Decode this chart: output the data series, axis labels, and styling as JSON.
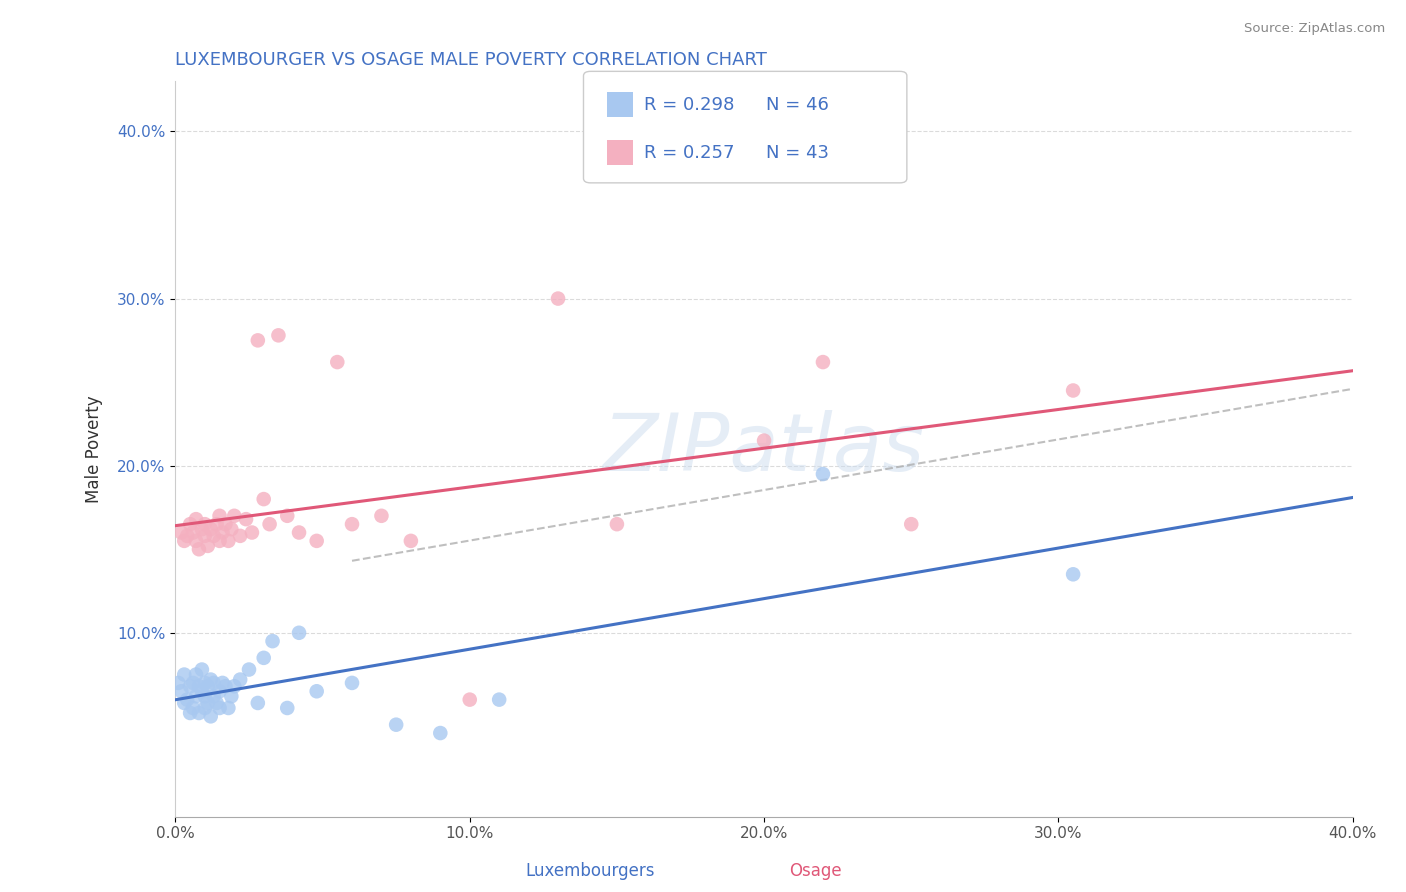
{
  "title": "LUXEMBOURGER VS OSAGE MALE POVERTY CORRELATION CHART",
  "source": "Source: ZipAtlas.com",
  "xlabel_lux": "Luxembourgers",
  "xlabel_osage": "Osage",
  "ylabel": "Male Poverty",
  "xlim": [
    0.0,
    0.4
  ],
  "ylim": [
    -0.01,
    0.43
  ],
  "xticks": [
    0.0,
    0.1,
    0.2,
    0.3,
    0.4
  ],
  "yticks": [
    0.1,
    0.2,
    0.3,
    0.4
  ],
  "ytick_labels": [
    "10.0%",
    "20.0%",
    "30.0%",
    "40.0%"
  ],
  "xtick_labels": [
    "0.0%",
    "10.0%",
    "20.0%",
    "30.0%",
    "40.0%"
  ],
  "lux_R": "0.298",
  "lux_N": "46",
  "osage_R": "0.257",
  "osage_N": "43",
  "lux_dot_color": "#a8c8f0",
  "osage_dot_color": "#f4b0c0",
  "lux_line_color": "#4472c4",
  "osage_line_color": "#e05878",
  "grid_color": "#cccccc",
  "bg_color": "#ffffff",
  "lux_x": [
    0.001,
    0.002,
    0.003,
    0.003,
    0.004,
    0.005,
    0.005,
    0.006,
    0.006,
    0.007,
    0.007,
    0.008,
    0.008,
    0.009,
    0.009,
    0.01,
    0.01,
    0.01,
    0.011,
    0.011,
    0.012,
    0.012,
    0.013,
    0.013,
    0.014,
    0.015,
    0.015,
    0.016,
    0.017,
    0.018,
    0.019,
    0.02,
    0.022,
    0.025,
    0.028,
    0.03,
    0.033,
    0.038,
    0.042,
    0.048,
    0.06,
    0.075,
    0.09,
    0.11,
    0.22,
    0.305
  ],
  "lux_y": [
    0.07,
    0.065,
    0.075,
    0.058,
    0.06,
    0.068,
    0.052,
    0.07,
    0.055,
    0.062,
    0.075,
    0.068,
    0.052,
    0.065,
    0.078,
    0.07,
    0.055,
    0.062,
    0.068,
    0.058,
    0.072,
    0.05,
    0.062,
    0.07,
    0.058,
    0.065,
    0.055,
    0.07,
    0.068,
    0.055,
    0.062,
    0.068,
    0.072,
    0.078,
    0.058,
    0.085,
    0.095,
    0.055,
    0.1,
    0.065,
    0.07,
    0.045,
    0.04,
    0.06,
    0.195,
    0.135
  ],
  "osage_x": [
    0.002,
    0.003,
    0.004,
    0.005,
    0.006,
    0.007,
    0.007,
    0.008,
    0.009,
    0.01,
    0.01,
    0.011,
    0.012,
    0.013,
    0.014,
    0.015,
    0.015,
    0.016,
    0.017,
    0.018,
    0.019,
    0.02,
    0.022,
    0.024,
    0.026,
    0.028,
    0.03,
    0.032,
    0.035,
    0.038,
    0.042,
    0.048,
    0.055,
    0.06,
    0.07,
    0.08,
    0.1,
    0.13,
    0.15,
    0.2,
    0.22,
    0.25,
    0.305
  ],
  "osage_y": [
    0.16,
    0.155,
    0.158,
    0.165,
    0.16,
    0.155,
    0.168,
    0.15,
    0.162,
    0.158,
    0.165,
    0.152,
    0.162,
    0.158,
    0.165,
    0.155,
    0.17,
    0.16,
    0.165,
    0.155,
    0.162,
    0.17,
    0.158,
    0.168,
    0.16,
    0.275,
    0.18,
    0.165,
    0.278,
    0.17,
    0.16,
    0.155,
    0.262,
    0.165,
    0.17,
    0.155,
    0.06,
    0.3,
    0.165,
    0.215,
    0.262,
    0.165,
    0.245
  ]
}
